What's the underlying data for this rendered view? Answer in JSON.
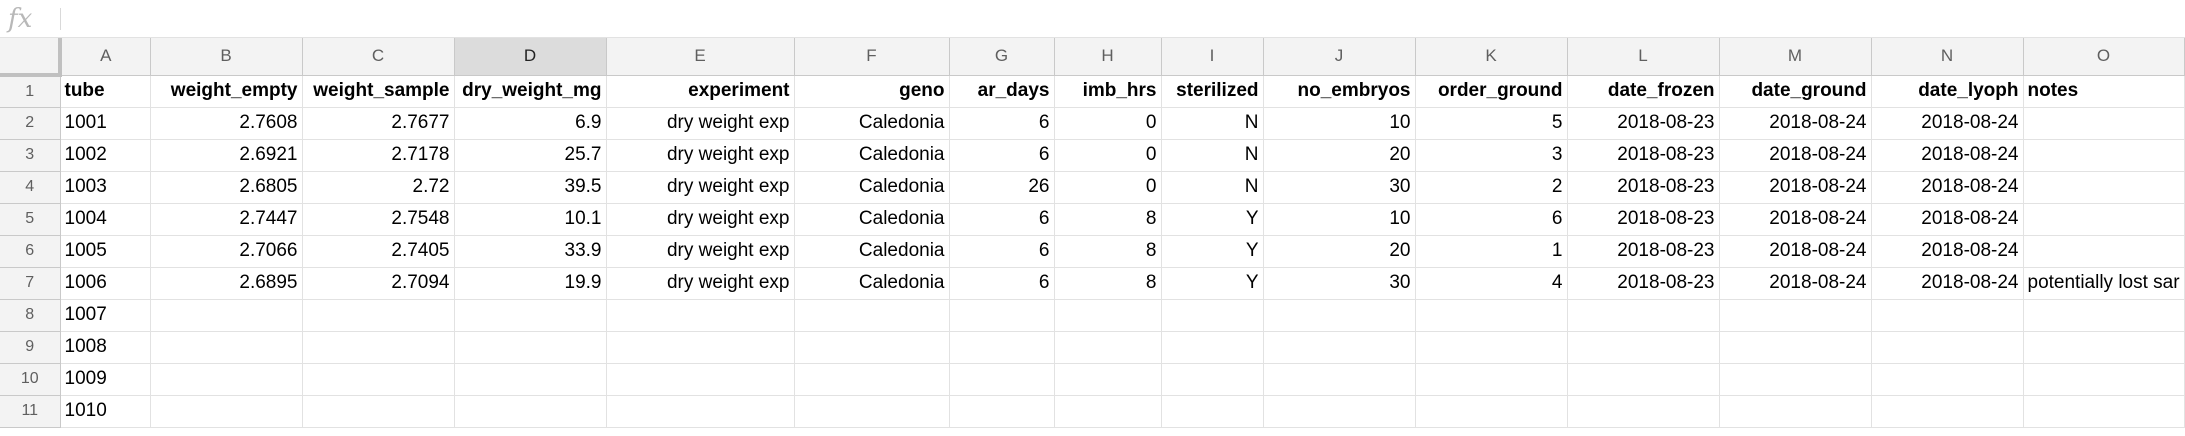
{
  "formula_bar": {
    "fx_label": "fx",
    "value": ""
  },
  "columns": [
    "A",
    "B",
    "C",
    "D",
    "E",
    "F",
    "G",
    "H",
    "I",
    "J",
    "K",
    "L",
    "M",
    "N",
    "O"
  ],
  "selected_column": "D",
  "rows": [
    {
      "n": "1",
      "cells": [
        "tube",
        "weight_empty",
        "weight_sample",
        "dry_weight_mg",
        "experiment",
        "geno",
        "ar_days",
        "imb_hrs",
        "sterilized",
        "no_embryos",
        "order_ground",
        "date_frozen",
        "date_ground",
        "date_lyoph",
        "notes"
      ]
    },
    {
      "n": "2",
      "cells": [
        "1001",
        "2.7608",
        "2.7677",
        "6.9",
        "dry weight exp",
        "Caledonia",
        "6",
        "0",
        "N",
        "10",
        "5",
        "2018-08-23",
        "2018-08-24",
        "2018-08-24",
        ""
      ]
    },
    {
      "n": "3",
      "cells": [
        "1002",
        "2.6921",
        "2.7178",
        "25.7",
        "dry weight exp",
        "Caledonia",
        "6",
        "0",
        "N",
        "20",
        "3",
        "2018-08-23",
        "2018-08-24",
        "2018-08-24",
        ""
      ]
    },
    {
      "n": "4",
      "cells": [
        "1003",
        "2.6805",
        "2.72",
        "39.5",
        "dry weight exp",
        "Caledonia",
        "26",
        "0",
        "N",
        "30",
        "2",
        "2018-08-23",
        "2018-08-24",
        "2018-08-24",
        ""
      ]
    },
    {
      "n": "5",
      "cells": [
        "1004",
        "2.7447",
        "2.7548",
        "10.1",
        "dry weight exp",
        "Caledonia",
        "6",
        "8",
        "Y",
        "10",
        "6",
        "2018-08-23",
        "2018-08-24",
        "2018-08-24",
        ""
      ]
    },
    {
      "n": "6",
      "cells": [
        "1005",
        "2.7066",
        "2.7405",
        "33.9",
        "dry weight exp",
        "Caledonia",
        "6",
        "8",
        "Y",
        "20",
        "1",
        "2018-08-23",
        "2018-08-24",
        "2018-08-24",
        ""
      ]
    },
    {
      "n": "7",
      "cells": [
        "1006",
        "2.6895",
        "2.7094",
        "19.9",
        "dry weight exp",
        "Caledonia",
        "6",
        "8",
        "Y",
        "30",
        "4",
        "2018-08-23",
        "2018-08-24",
        "2018-08-24",
        "potentially lost sar"
      ]
    },
    {
      "n": "8",
      "cells": [
        "1007",
        "",
        "",
        "",
        "",
        "",
        "",
        "",
        "",
        "",
        "",
        "",
        "",
        "",
        ""
      ]
    },
    {
      "n": "9",
      "cells": [
        "1008",
        "",
        "",
        "",
        "",
        "",
        "",
        "",
        "",
        "",
        "",
        "",
        "",
        "",
        ""
      ]
    },
    {
      "n": "10",
      "cells": [
        "1009",
        "",
        "",
        "",
        "",
        "",
        "",
        "",
        "",
        "",
        "",
        "",
        "",
        "",
        ""
      ]
    },
    {
      "n": "11",
      "cells": [
        "1010",
        "",
        "",
        "",
        "",
        "",
        "",
        "",
        "",
        "",
        "",
        "",
        "",
        "",
        ""
      ]
    }
  ]
}
